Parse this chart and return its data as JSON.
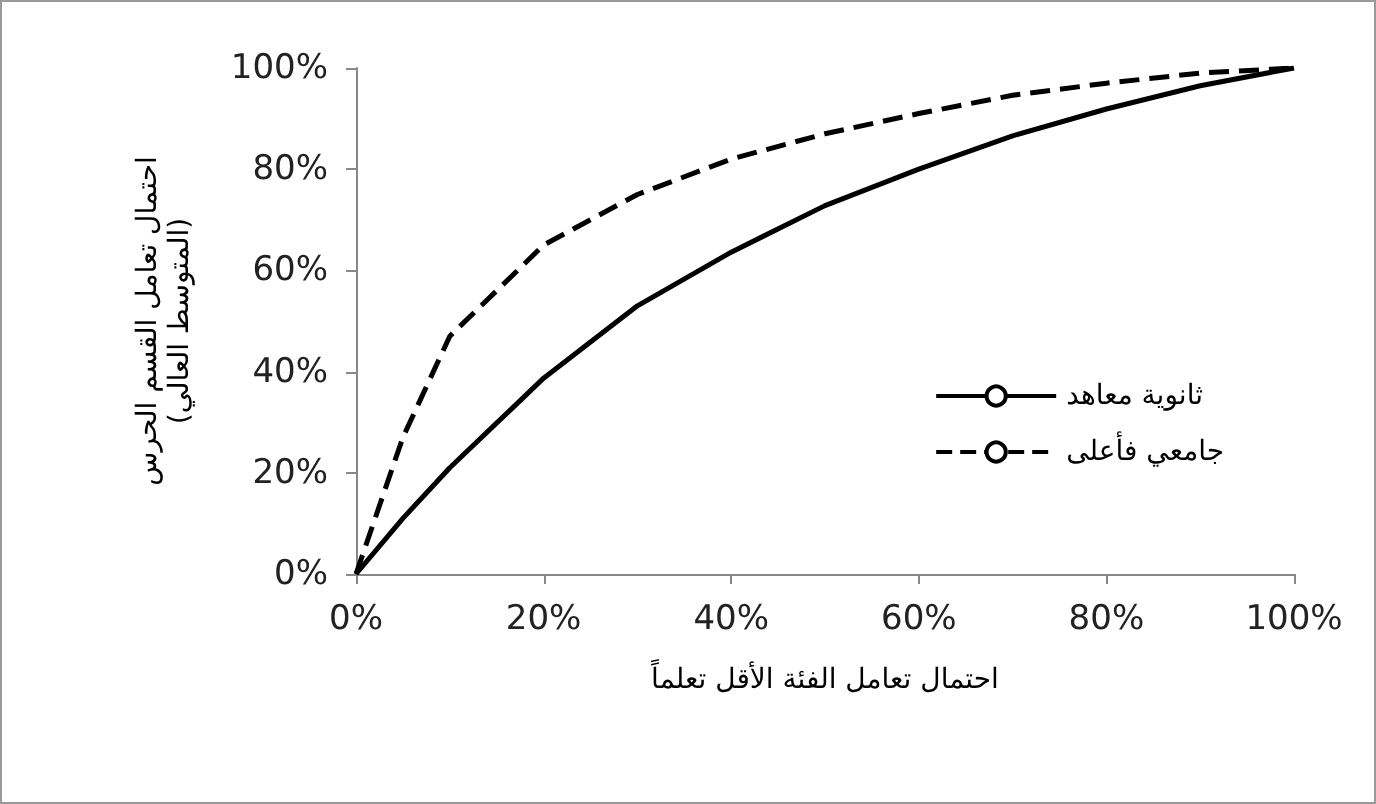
{
  "chart_data": {
    "type": "line",
    "xlabel": "احتمال تعامل الفئة الأقل تعلماً",
    "ylabel": "احتمال تعامل القسم الحرس\n(المتوسط العالي)",
    "x": [
      0,
      5,
      10,
      20,
      30,
      40,
      50,
      60,
      70,
      80,
      90,
      100
    ],
    "series": [
      {
        "name": "ثانوية معاهد",
        "color": "#000000",
        "line_style": "solid",
        "values": [
          0,
          11,
          21,
          38.7,
          53,
          63.6,
          72.8,
          80,
          86.6,
          91.9,
          96.5,
          100
        ]
      },
      {
        "name": "جامعي فأعلى",
        "color": "#000000",
        "line_style": "dashed",
        "values": [
          0,
          27,
          47,
          65,
          75,
          82,
          87,
          91,
          94.6,
          97,
          99,
          100
        ]
      }
    ],
    "xlim": [
      0,
      100
    ],
    "xticks": [
      {
        "value": 0,
        "label": "0%"
      },
      {
        "value": 20,
        "label": "20%"
      },
      {
        "value": 40,
        "label": "40%"
      },
      {
        "value": 60,
        "label": "60%"
      },
      {
        "value": 80,
        "label": "80%"
      },
      {
        "value": 100,
        "label": "100%"
      }
    ],
    "ylim": [
      0,
      100
    ],
    "yticks": [
      {
        "value": 0,
        "label": "0%"
      },
      {
        "value": 20,
        "label": "20%"
      },
      {
        "value": 40,
        "label": "40%"
      },
      {
        "value": 60,
        "label": "60%"
      },
      {
        "value": 80,
        "label": "80%"
      },
      {
        "value": 100,
        "label": "100%"
      }
    ],
    "grid": false,
    "legend": "right",
    "marker": "none"
  }
}
